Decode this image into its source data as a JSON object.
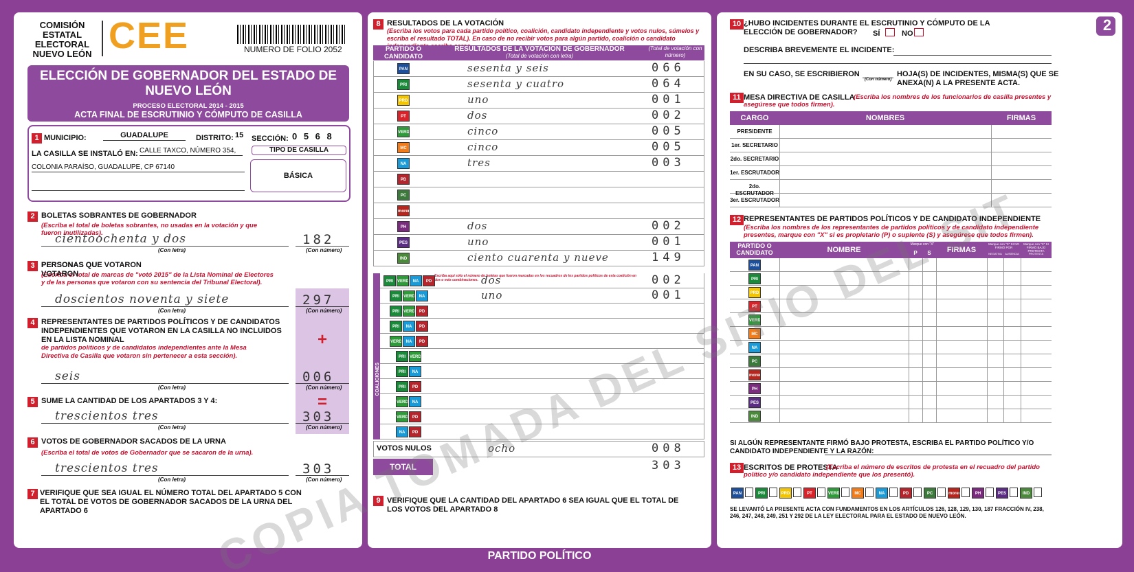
{
  "header": {
    "org": "COMISIÓN ESTATAL ELECTORAL NUEVO LEÓN",
    "logo": "CEE",
    "folio": "NUMERO DE FOLIO 2052",
    "title": "ELECCIÓN DE GOBERNADOR DEL ESTADO DE NUEVO LEÓN",
    "process": "PROCESO ELECTORAL 2014 - 2015",
    "subtitle": "ACTA FINAL DE ESCRUTINIO Y CÓMPUTO DE CASILLA",
    "sheet": "2"
  },
  "labels": {
    "con_letra": "(Con letra)",
    "con_numero": "(Con número)"
  },
  "s1": {
    "num": "1",
    "municipio_label": "MUNICIPIO:",
    "municipio": "GUADALUPE",
    "distrito_label": "DISTRITO:",
    "distrito": "15",
    "seccion_label": "SECCIÓN:",
    "seccion": "0 5 6 8",
    "instalo_label": "LA CASILLA SE INSTALÓ EN:",
    "address_line1": "CALLE TAXCO, NÚMERO 354,",
    "address_line2": "COLONIA PARAÍSO, GUADALUPE, CP 67140",
    "tipo_label": "TIPO DE CASILLA",
    "tipo": "BÁSICA"
  },
  "s2": {
    "num": "2",
    "title": "BOLETAS SOBRANTES DE GOBERNADOR",
    "note": "(Escriba el total de boletas sobrantes, no usadas en la votación y que fueron inutilizadas).",
    "letra": "cientoochenta y dos",
    "numero": "182"
  },
  "s3": {
    "num": "3",
    "title": "PERSONAS QUE VOTARON",
    "note": "(Escriba el total de marcas de \"votó 2015\" de la Lista Nominal de Electores y de las personas que votaron con su sentencia del Tribunal Electoral).",
    "letra": "doscientos noventa y siete",
    "numero": "297"
  },
  "s4": {
    "num": "4",
    "title": "REPRESENTANTES DE PARTIDOS POLÍTICOS Y DE CANDIDATOS INDEPENDIENTES QUE VOTARON EN LA CASILLA NO INCLUIDOS EN LA LISTA NOMINAL",
    "note": "(Escriba el total de marcas de \"votó 2015\" de la relación de representantes de partidos políticos y de candidatos independientes ante la Mesa Directiva de Casilla que votaron sin pertenecer a esta sección).",
    "letra": "seis",
    "numero": "006",
    "sign": "+"
  },
  "s5": {
    "num": "5",
    "title": "SUME LA CANTIDAD DE LOS APARTADOS 3 Y 4:",
    "letra": "trescientos tres",
    "numero": "303",
    "sign": "="
  },
  "s6": {
    "num": "6",
    "title": "VOTOS DE GOBERNADOR SACADOS DE LA URNA",
    "note": "(Escriba el total de votos de Gobernador que se sacaron de la urna).",
    "letra": "trescientos tres",
    "numero": "303"
  },
  "s7": {
    "num": "7",
    "text": "VERIFIQUE QUE SEA IGUAL EL NÚMERO TOTAL DEL APARTADO 5 CON EL TOTAL DE VOTOS DE GOBERNADOR SACADOS DE LA URNA DEL APARTADO 6"
  },
  "s8": {
    "num": "8",
    "title": "RESULTADOS DE LA VOTACIÓN",
    "note": "(Escriba los votos para cada partido político, coalición, candidato independiente y votos nulos, súmelos y escriba el resultado TOTAL). En caso de no recibir votos para algún partido, coalición o candidato independiente escriba ceros.",
    "col_party": "PARTIDO O CANDIDATO",
    "col_results": "RESULTADOS DE LA VOTACIÓN DE GOBERNADOR",
    "col_letra": "(Total de votación con letra)",
    "col_numero": "(Total de votación con número)",
    "parties": [
      {
        "name": "PAN",
        "color": "#1c4f9c",
        "letra": "sesenta y seis",
        "numero": "066"
      },
      {
        "name": "PRI",
        "color": "#1a8a3a",
        "letra": "sesenta y cuatro",
        "numero": "064"
      },
      {
        "name": "PRD",
        "color": "#f2c500",
        "letra": "uno",
        "numero": "001"
      },
      {
        "name": "PT",
        "color": "#d8232a",
        "letra": "dos",
        "numero": "002"
      },
      {
        "name": "VERDE",
        "color": "#2f9a3a",
        "letra": "cinco",
        "numero": "005"
      },
      {
        "name": "MC",
        "color": "#f07c1c",
        "letra": "cinco",
        "numero": "005"
      },
      {
        "name": "NA",
        "color": "#1a9ad6",
        "letra": "tres",
        "numero": "003"
      },
      {
        "name": "PD",
        "color": "#b3262d",
        "letra": null,
        "numero": null
      },
      {
        "name": "PC",
        "color": "#3b7a3a",
        "letra": null,
        "numero": null
      },
      {
        "name": "morena",
        "color": "#b5261e",
        "letra": null,
        "numero": null
      },
      {
        "name": "PH",
        "color": "#7b2b7e",
        "letra": "dos",
        "numero": "002"
      },
      {
        "name": "PES",
        "color": "#5a2d82",
        "letra": "uno",
        "numero": "001"
      },
      {
        "name": "IND",
        "color": "#4a8a3a",
        "letra": "ciento cuarenta y nueve",
        "numero": "149"
      }
    ],
    "coalition_label": "COALICIONES",
    "coalition_note": "Escriba aquí sólo el número de boletas que fueron marcadas en los recuadros de los partidos políticos de esta coalición en dos o más combinaciones.",
    "coalitions": [
      {
        "letra": "dos",
        "numero": "002"
      },
      {
        "letra": "uno",
        "numero": "001"
      },
      {
        "letra": null,
        "numero": null
      },
      {
        "letra": null,
        "numero": null
      },
      {
        "letra": null,
        "numero": null
      },
      {
        "letra": null,
        "numero": null
      },
      {
        "letra": null,
        "numero": null
      },
      {
        "letra": null,
        "numero": null
      },
      {
        "letra": null,
        "numero": null
      },
      {
        "letra": null,
        "numero": null
      },
      {
        "letra": null,
        "numero": null
      }
    ],
    "nulos_label": "VOTOS NULOS",
    "nulos_letra": "ocho",
    "nulos_numero": "008",
    "total_label": "TOTAL",
    "total_numero": "303"
  },
  "s9": {
    "num": "9",
    "text": "VERIFIQUE QUE LA CANTIDAD DEL APARTADO 6 SEA IGUAL QUE EL TOTAL DE LOS VOTOS DEL APARTADO 8"
  },
  "s10": {
    "num": "10",
    "title": "¿HUBO INCIDENTES DURANTE EL ESCRUTINIO Y CÓMPUTO DE LA ELECCIÓN DE GOBERNADOR?",
    "si": "SÍ",
    "no": "NO",
    "describe": "DESCRIBA BREVEMENTE EL INCIDENTE:",
    "hojas_a": "EN SU CASO, SE ESCRIBIERON",
    "hojas_b": "HOJA(S) DE INCIDENTES, MISMA(S) QUE SE ANEXA(N) A LA PRESENTE ACTA."
  },
  "s11": {
    "num": "11",
    "title": "MESA DIRECTIVA DE CASILLA",
    "note": "(Escriba los nombres de los funcionarios de casilla presentes y asegúrese que todos firmen).",
    "headers": [
      "CARGO",
      "NOMBRES",
      "FIRMAS"
    ],
    "roles": [
      "PRESIDENTE",
      "1er. SECRETARIO",
      "2do. SECRETARIO",
      "1er. ESCRUTADOR",
      "2do. ESCRUTADOR",
      "3er. ESCRUTADOR"
    ]
  },
  "s12": {
    "num": "12",
    "title": "REPRESENTANTES DE PARTIDOS POLÍTICOS Y DE CANDIDATO INDEPENDIENTE",
    "note": "(Escriba los nombres de los representantes de partidos políticos y de candidato independiente presentes, marque con \"X\" si es propietario (P) o suplente (S) y asegúrese que todos firmen).",
    "col_party": "PARTIDO O CANDIDATO",
    "col_name": "NOMBRE",
    "col_mark": "Marque con \"X\"",
    "col_p": "P",
    "col_s": "S",
    "col_firmas": "FIRMAS",
    "col_nofirmo": "Marque con \"X\" SI NO FIRMÓ POR",
    "col_negativa": "NEGATIVA",
    "col_ausencia": "AUSENCIA",
    "col_protesta_head": "Marque con \"X\" SI FIRMÓ BAJO PROTESTA",
    "col_protesta": "PROTESTA",
    "protest_text": "SI ALGÚN REPRESENTANTE FIRMÓ BAJO PROTESTA, ESCRIBA EL PARTIDO POLÍTICO Y/O CANDIDATO INDEPENDIENTE Y LA RAZÓN:"
  },
  "s13": {
    "num": "13",
    "title": "ESCRITOS DE PROTESTA",
    "note": "(Escriba el número de escritos de protesta en el recuadro del partido político y/o candidato independiente que los presentó).",
    "legal": "SE LEVANTÓ LA PRESENTE ACTA CON FUNDAMENTOS EN LOS ARTÍCULOS 126, 128, 129, 130, 187 FRACCIÓN IV, 238, 246, 247, 248, 249, 251 Y 292 DE LA LEY ELECTORAL PARA EL ESTADO DE NUEVO LEÓN."
  },
  "footer": "PARTIDO POLÍTICO",
  "watermark": "COPIA TOMADA DEL SITIO DEL SIT"
}
